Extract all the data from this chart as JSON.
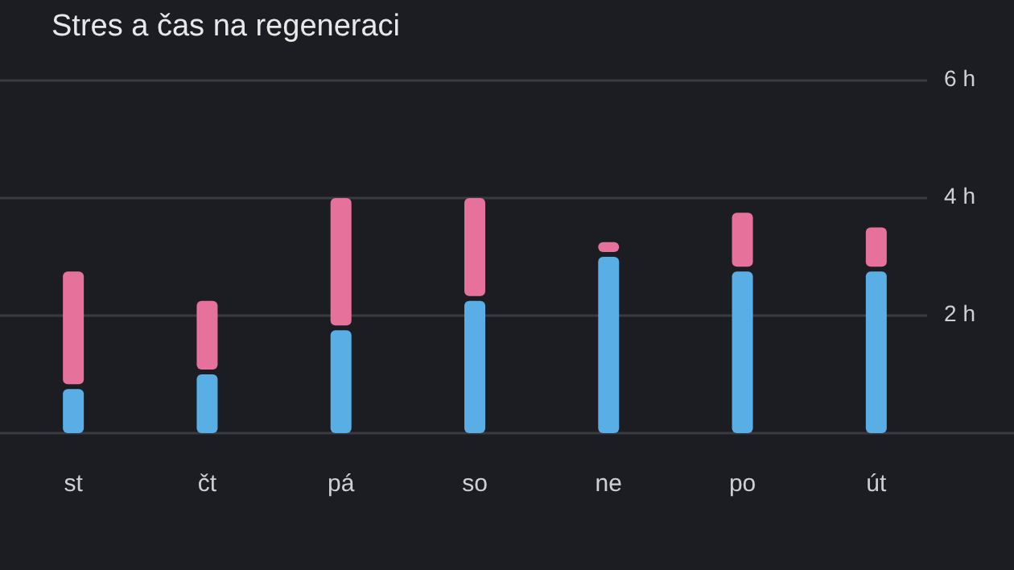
{
  "chart_data": {
    "type": "bar",
    "title": "Stres a čas na regeneraci",
    "categories": [
      "st",
      "čt",
      "pá",
      "so",
      "ne",
      "po",
      "út"
    ],
    "stacked": true,
    "series": [
      {
        "color": "#5aaee6",
        "values": [
          0.75,
          1.0,
          1.75,
          2.25,
          3.0,
          2.75,
          2.75
        ]
      },
      {
        "color": "#e6729b",
        "values": [
          2.0,
          1.25,
          2.25,
          1.75,
          0.25,
          1.0,
          0.75
        ]
      }
    ],
    "ylim": [
      0,
      6
    ],
    "yticks": [
      {
        "value": 2,
        "label": "2 h"
      },
      {
        "value": 4,
        "label": "4 h"
      },
      {
        "value": 6,
        "label": "6 h"
      }
    ],
    "grid": "y"
  }
}
